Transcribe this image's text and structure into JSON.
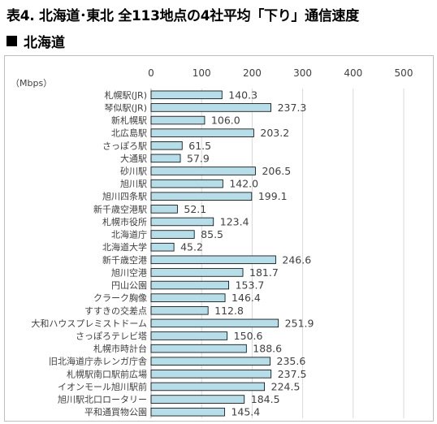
{
  "page_title": "表4. 北海道･東北 全113地点の4社平均「下り」通信速度",
  "section_heading": "北海道",
  "chart_data": {
    "type": "bar",
    "orientation": "horizontal",
    "unit_label": "（Mbps）",
    "xlim": [
      0,
      500
    ],
    "x_ticks": [
      "0",
      "100",
      "200",
      "300",
      "400",
      "500"
    ],
    "bar_color": "#b7dde8",
    "bar_border_color": "#000000",
    "grid": true,
    "categories": [
      "札幌駅(JR)",
      "琴似駅(JR)",
      "新札幌駅",
      "北広島駅",
      "さっぽろ駅",
      "大通駅",
      "砂川駅",
      "旭川駅",
      "旭川四条駅",
      "新千歳空港駅",
      "札幌市役所",
      "北海道庁",
      "北海道大学",
      "新千歳空港",
      "旭川空港",
      "円山公園",
      "クラーク胸像",
      "すすきの交差点",
      "大和ハウスプレミストドーム",
      "さっぽろテレビ塔",
      "札幌市時計台",
      "旧北海道庁赤レンガ庁舎",
      "札幌駅南口駅前広場",
      "イオンモール旭川駅前",
      "旭川駅北口ロータリー",
      "平和通買物公園"
    ],
    "values": [
      140.3,
      237.3,
      106.0,
      203.2,
      61.5,
      57.9,
      206.5,
      142.0,
      199.1,
      52.1,
      123.4,
      85.5,
      45.2,
      246.6,
      181.7,
      153.7,
      146.4,
      112.8,
      251.9,
      150.6,
      188.6,
      235.6,
      237.5,
      224.5,
      184.5,
      145.4
    ],
    "value_labels": [
      "140.3",
      "237.3",
      "106.0",
      "203.2",
      "61.5",
      "57.9",
      "206.5",
      "142.0",
      "199.1",
      "52.1",
      "123.4",
      "85.5",
      "45.2",
      "246.6",
      "181.7",
      "153.7",
      "146.4",
      "112.8",
      "251.9",
      "150.6",
      "188.6",
      "235.6",
      "237.5",
      "224.5",
      "184.5",
      "145.4"
    ]
  }
}
